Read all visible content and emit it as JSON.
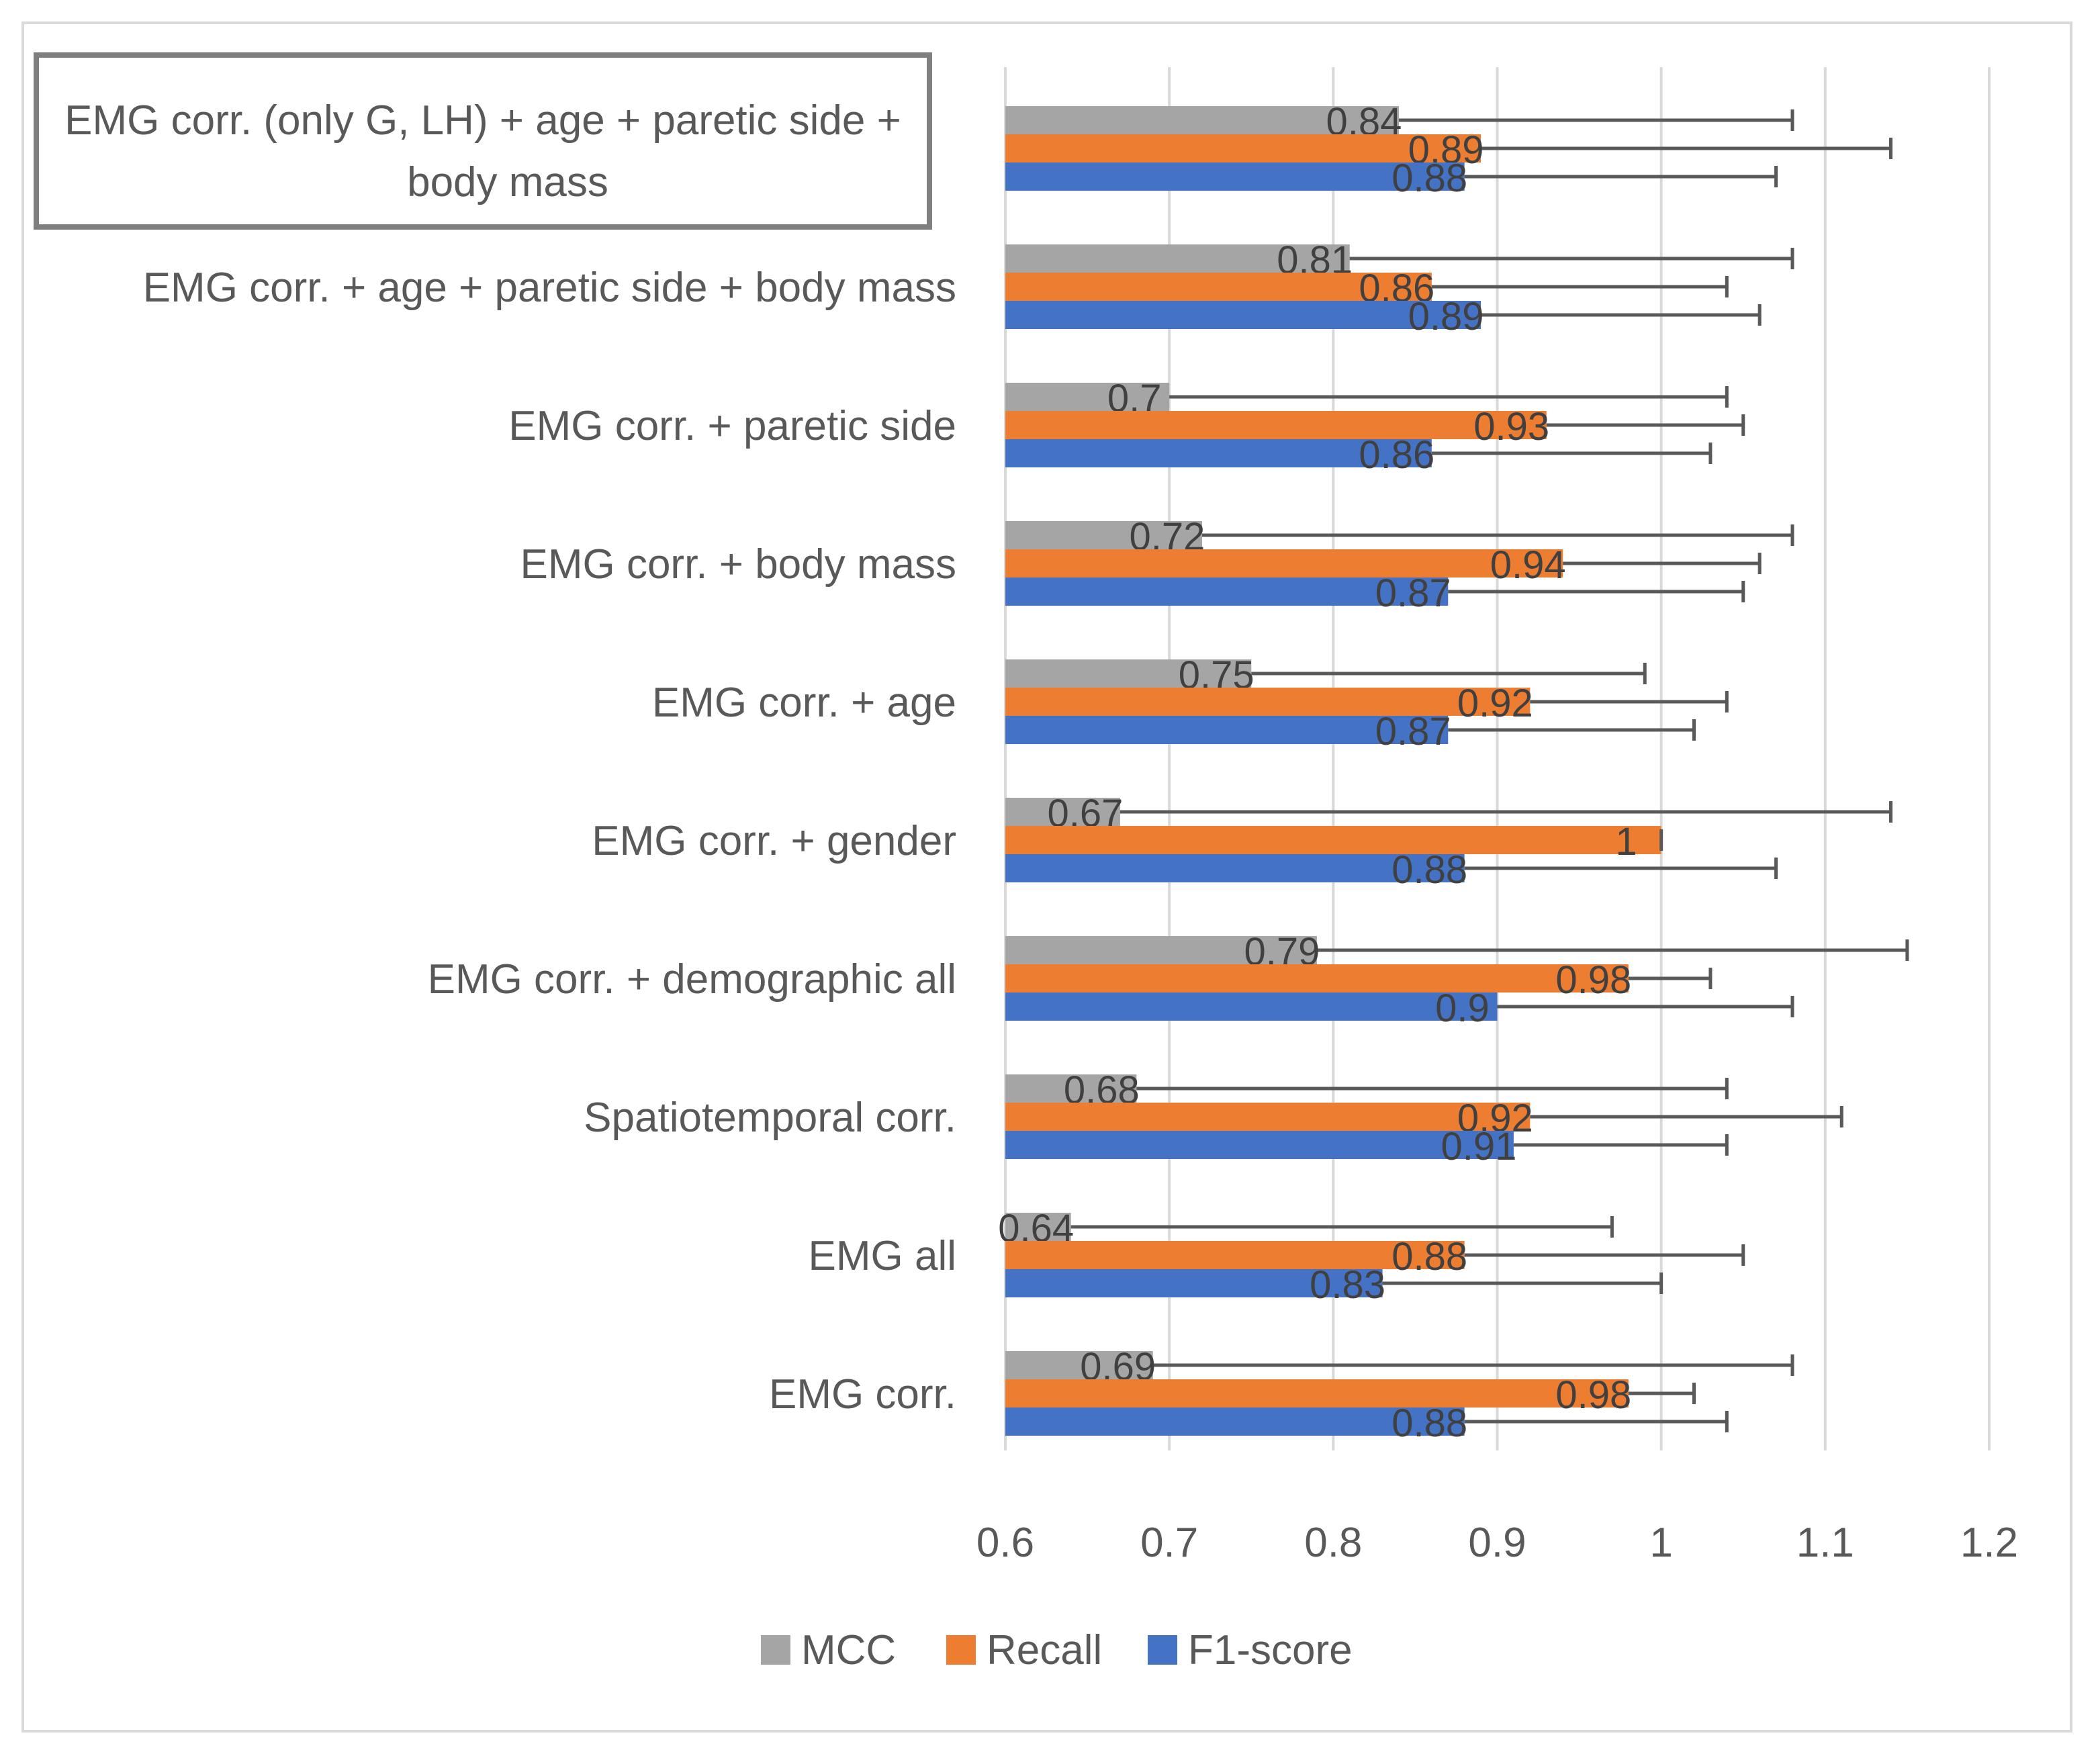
{
  "chart_data": {
    "type": "bar",
    "orientation": "horizontal",
    "categories": [
      "EMG corr. (only G, LH) + age + paretic side + body mass",
      "EMG corr. +  age + paretic side + body mass",
      "EMG corr. + paretic side",
      "EMG corr. + body mass",
      "EMG corr. + age",
      "EMG corr. + gender",
      "EMG corr. + demographic all",
      "Spatiotemporal corr.",
      "EMG all",
      "EMG corr."
    ],
    "highlighted_category_lines": [
      "EMG corr. (only G, LH) + age + paretic side +",
      "body mass"
    ],
    "series": [
      {
        "name": "MCC",
        "color": "#a5a5a5",
        "values": [
          0.84,
          0.81,
          0.7,
          0.72,
          0.75,
          0.67,
          0.79,
          0.68,
          0.64,
          0.69
        ],
        "error_upper": [
          1.08,
          1.08,
          1.04,
          1.08,
          0.99,
          1.14,
          1.15,
          1.04,
          0.97,
          1.08
        ]
      },
      {
        "name": "Recall",
        "color": "#ed7d31",
        "values": [
          0.89,
          0.86,
          0.93,
          0.94,
          0.92,
          1,
          0.98,
          0.92,
          0.88,
          0.98
        ],
        "error_upper": [
          1.14,
          1.04,
          1.05,
          1.06,
          1.04,
          1.0,
          1.03,
          1.11,
          1.05,
          1.02
        ]
      },
      {
        "name": "F1-score",
        "color": "#4472c4",
        "values": [
          0.88,
          0.89,
          0.86,
          0.87,
          0.87,
          0.88,
          0.9,
          0.91,
          0.83,
          0.88
        ],
        "error_upper": [
          1.07,
          1.06,
          1.03,
          1.05,
          1.02,
          1.07,
          1.08,
          1.04,
          1.0,
          1.04
        ]
      }
    ],
    "xlim": [
      0.6,
      1.2
    ],
    "x_ticks": [
      "0.6",
      "0.7",
      "0.8",
      "0.9",
      "1",
      "1.1",
      "1.2"
    ],
    "grid": true,
    "legend_position": "bottom",
    "legend_order": [
      "MCC",
      "Recall",
      "F1-score"
    ],
    "title": "",
    "xlabel": "",
    "ylabel": ""
  }
}
